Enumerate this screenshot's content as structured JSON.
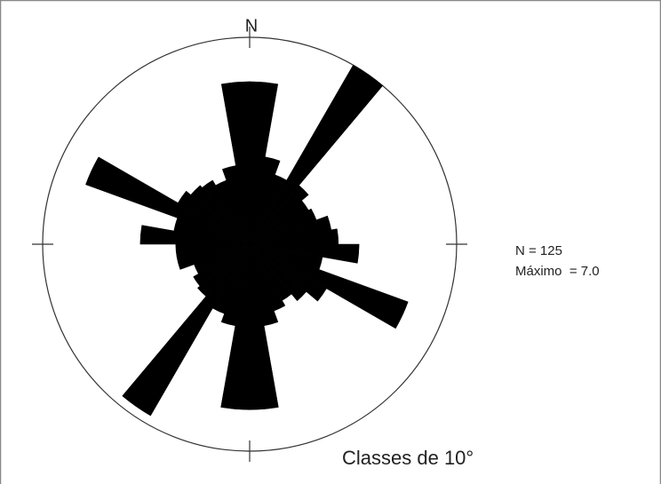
{
  "chart_data": {
    "type": "rose",
    "north_label": "N",
    "count_label": "N = 125",
    "max_label": "Máximo  = 7.0",
    "class_label": "Classes de 10°",
    "values": [
      5.5,
      3.0,
      2.5,
      7.0,
      2.6,
      2.3,
      2.4,
      2.8,
      3.0,
      3.7,
      2.5,
      5.7,
      3.0,
      2.5,
      2.2,
      2.4,
      2.8,
      5.6,
      5.6,
      2.8,
      2.5,
      6.7,
      2.3,
      2.2,
      2.0,
      2.5,
      2.5,
      3.7,
      2.6,
      5.9,
      2.8,
      2.6,
      2.5,
      2.3,
      2.7,
      5.5
    ],
    "rlim": [
      0,
      7.0
    ],
    "color": "#000000"
  }
}
